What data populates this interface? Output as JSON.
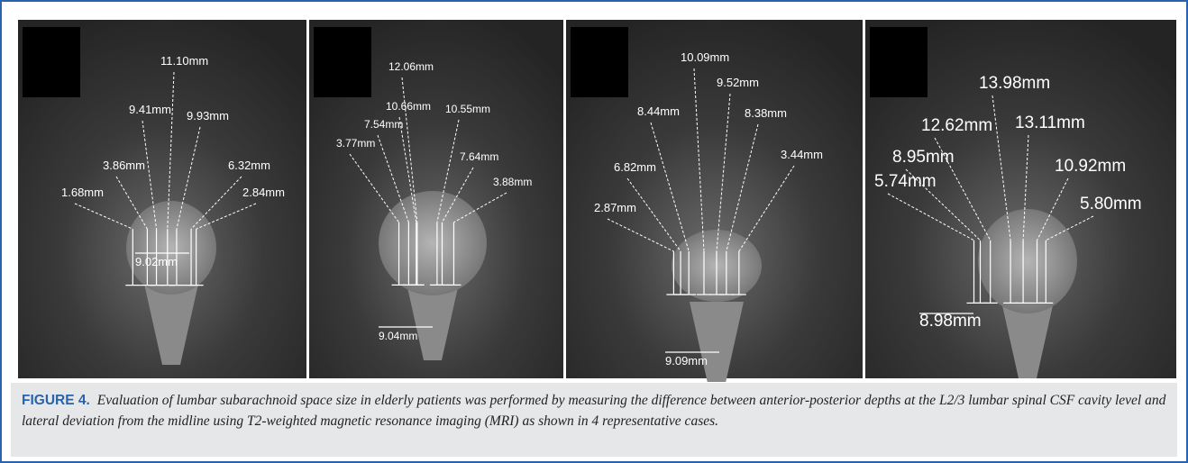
{
  "figure": {
    "panels": [
      {
        "labels": [
          "11.10mm",
          "9.41mm",
          "9.93mm",
          "3.86mm",
          "6.32mm",
          "1.68mm",
          "2.84mm",
          "9.02mm"
        ]
      },
      {
        "labels": [
          "12.06mm",
          "10.66mm",
          "10.55mm",
          "7.54mm",
          "3.77mm",
          "7.64mm",
          "3.88mm",
          "9.04mm"
        ]
      },
      {
        "labels": [
          "10.09mm",
          "9.52mm",
          "8.44mm",
          "8.38mm",
          "6.82mm",
          "3.44mm",
          "2.87mm",
          "9.09mm"
        ]
      },
      {
        "labels": [
          "13.98mm",
          "12.62mm",
          "13.11mm",
          "8.95mm",
          "10.92mm",
          "5.74mm",
          "5.80mm",
          "8.98mm"
        ]
      }
    ],
    "caption": {
      "label": "FIGURE 4.",
      "text": "Evaluation of lumbar subarachnoid space size in elderly patients was performed by measuring the difference between anterior-posterior depths at the L2/3 lumbar spinal CSF cavity level and lateral deviation from the midline using T2-weighted magnetic resonance imaging (MRI) as shown in 4 representative cases."
    }
  }
}
